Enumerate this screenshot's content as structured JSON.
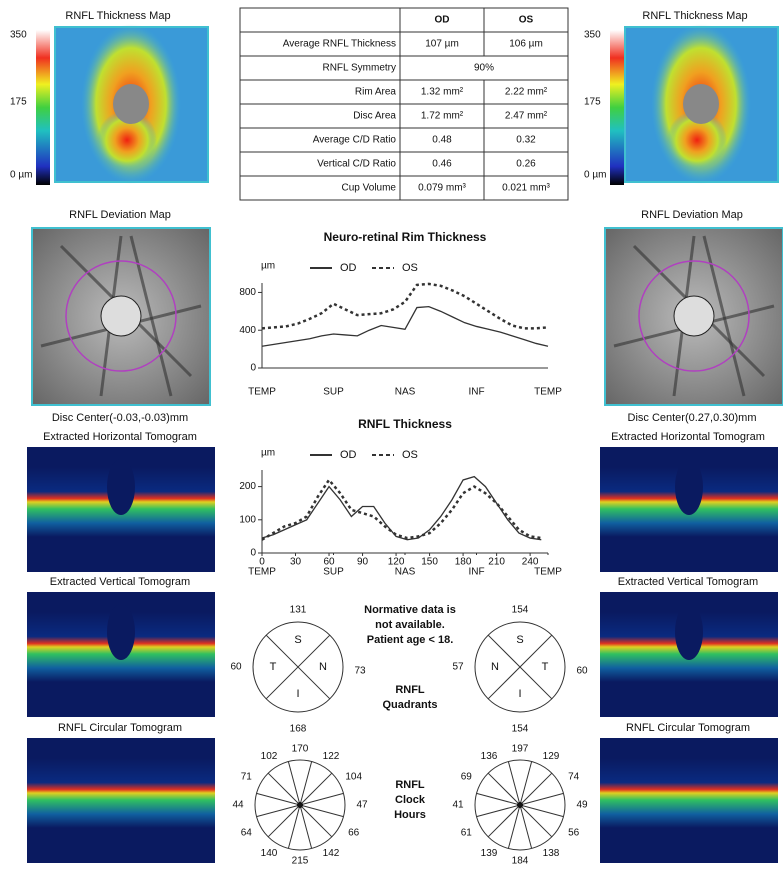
{
  "report": {
    "od_map": {
      "title": "RNFL Thickness Map",
      "scale": [
        "350",
        "175",
        "0 µm"
      ]
    },
    "os_map": {
      "title": "RNFL Thickness Map",
      "scale": [
        "350",
        "175",
        "0 µm"
      ]
    },
    "table": {
      "header": [
        "OD",
        "OS"
      ],
      "rows": [
        [
          "Average RNFL Thickness",
          "107 µm",
          "106 µm"
        ],
        [
          "RNFL Symmetry",
          "90%"
        ],
        [
          "Rim Area",
          "1.32 mm²",
          "2.22 mm²"
        ],
        [
          "Disc Area",
          "1.72 mm²",
          "2.47 mm²"
        ],
        [
          "Average C/D Ratio",
          "0.48",
          "0.32"
        ],
        [
          "Vertical C/D Ratio",
          "0.46",
          "0.26"
        ],
        [
          "Cup Volume",
          "0.079 mm³",
          "0.021 mm³"
        ]
      ]
    },
    "od_deviation": {
      "title": "RNFL Deviation Map",
      "caption": "Disc Center(-0.03,-0.03)mm"
    },
    "os_deviation": {
      "title": "RNFL Deviation Map",
      "caption": "Disc Center(0.27,0.30)mm"
    },
    "tomograms": [
      "Extracted Horizontal Tomogram",
      "Extracted Vertical Tomogram",
      "RNFL Circular Tomogram"
    ],
    "note": [
      "Normative data is",
      "not available.",
      "Patient age < 18."
    ],
    "quadrants_label": [
      "RNFL",
      "Quadrants"
    ],
    "od_quadrants": [
      {
        "letter": "S",
        "value": 131
      },
      {
        "letter": "T",
        "value": 60
      },
      {
        "letter": "N",
        "value": 73
      },
      {
        "letter": "I",
        "value": 168
      }
    ],
    "os_quadrants": [
      {
        "letter": "S",
        "value": 154
      },
      {
        "letter": "N",
        "value": 57
      },
      {
        "letter": "T",
        "value": 60
      },
      {
        "letter": "I",
        "value": 154
      }
    ],
    "clock_label": [
      "RNFL",
      "Clock",
      "Hours"
    ],
    "od_clock": [
      170,
      122,
      104,
      47,
      66,
      142,
      215,
      140,
      64,
      44,
      71,
      102
    ],
    "os_clock": [
      197,
      129,
      74,
      49,
      56,
      138,
      184,
      139,
      61,
      41,
      69,
      136
    ]
  },
  "chart_data": [
    {
      "type": "line",
      "title": "Neuro-retinal Rim Thickness",
      "y_label": "µm",
      "categories": [
        "TEMP",
        null,
        null,
        null,
        null,
        null,
        "SUP",
        null,
        null,
        null,
        null,
        null,
        "NAS",
        null,
        null,
        null,
        null,
        null,
        "INF",
        null,
        null,
        null,
        null,
        null,
        "TEMP"
      ],
      "series": [
        {
          "name": "OD",
          "color": "#333333",
          "style": "solid",
          "values": [
            230,
            250,
            270,
            290,
            310,
            340,
            360,
            350,
            340,
            400,
            450,
            430,
            410,
            640,
            650,
            600,
            540,
            480,
            440,
            410,
            380,
            340,
            300,
            260,
            230
          ]
        },
        {
          "name": "OS",
          "color": "#333333",
          "style": "dashed",
          "values": [
            420,
            430,
            440,
            470,
            520,
            580,
            680,
            620,
            560,
            570,
            580,
            620,
            700,
            880,
            890,
            870,
            820,
            760,
            680,
            600,
            520,
            450,
            420,
            420,
            430
          ]
        }
      ],
      "ylim": [
        0,
        900
      ],
      "yticks": [
        0,
        400,
        800
      ]
    },
    {
      "type": "line",
      "title": "RNFL Thickness",
      "y_label": "µm",
      "x": [
        0,
        10,
        20,
        30,
        40,
        50,
        60,
        70,
        80,
        90,
        100,
        110,
        120,
        130,
        140,
        150,
        160,
        170,
        180,
        190,
        200,
        210,
        220,
        230,
        240,
        250
      ],
      "series": [
        {
          "name": "OD",
          "color": "#333333",
          "style": "solid",
          "values": [
            45,
            55,
            70,
            85,
            100,
            150,
            200,
            160,
            110,
            140,
            140,
            90,
            50,
            40,
            45,
            70,
            110,
            160,
            220,
            230,
            200,
            150,
            100,
            60,
            45,
            40
          ]
        },
        {
          "name": "OS",
          "color": "#333333",
          "style": "dashed",
          "values": [
            40,
            60,
            80,
            90,
            110,
            170,
            220,
            180,
            130,
            120,
            110,
            80,
            55,
            45,
            50,
            60,
            90,
            130,
            180,
            200,
            180,
            150,
            110,
            70,
            50,
            45
          ]
        }
      ],
      "xlim": [
        0,
        256
      ],
      "xticks": [
        0,
        30,
        60,
        90,
        120,
        150,
        180,
        210,
        240
      ],
      "region_ticks": [
        {
          "value": 0,
          "label": "TEMP"
        },
        {
          "value": 64,
          "label": "SUP"
        },
        {
          "value": 128,
          "label": "NAS"
        },
        {
          "value": 192,
          "label": "INF"
        },
        {
          "value": 256,
          "label": "TEMP"
        }
      ],
      "ylim": [
        0,
        250
      ],
      "yticks": [
        0,
        100,
        200
      ]
    }
  ]
}
